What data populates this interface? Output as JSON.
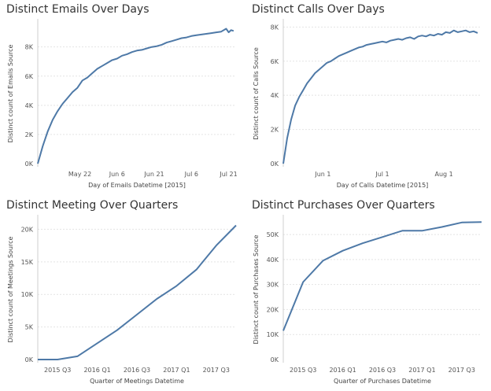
{
  "chart_data": [
    {
      "type": "line",
      "title": "Distinct Emails Over Days",
      "xlabel": "Day of Emails Datetime [2015]",
      "ylabel": "Distinct count of Emails Source",
      "x_ticks": [
        "May 22",
        "Jun 6",
        "Jun 21",
        "Jul 6",
        "Jul 21"
      ],
      "x_domain": [
        0,
        80
      ],
      "x_tick_pos": [
        17,
        32,
        47,
        62,
        77
      ],
      "y_ticks": [
        "0K",
        "2K",
        "4K",
        "6K",
        "8K"
      ],
      "y_tick_vals": [
        0,
        2000,
        4000,
        6000,
        8000
      ],
      "ylim": [
        0,
        9600
      ],
      "grid": true,
      "series": [
        {
          "x": [
            0,
            2,
            4,
            6,
            8,
            10,
            12,
            14,
            16,
            18,
            20,
            22,
            24,
            26,
            28,
            30,
            32,
            34,
            36,
            38,
            40,
            42,
            44,
            46,
            48,
            50,
            52,
            54,
            56,
            58,
            60,
            62,
            64,
            66,
            68,
            70,
            72,
            74,
            76,
            77,
            78,
            79
          ],
          "values": [
            0,
            1200,
            2200,
            3000,
            3600,
            4100,
            4500,
            4900,
            5200,
            5700,
            5900,
            6200,
            6500,
            6700,
            6900,
            7100,
            7200,
            7400,
            7500,
            7650,
            7750,
            7800,
            7900,
            8000,
            8050,
            8150,
            8300,
            8400,
            8500,
            8600,
            8650,
            8750,
            8800,
            8850,
            8900,
            8950,
            9000,
            9050,
            9250,
            9000,
            9150,
            9100
          ]
        }
      ]
    },
    {
      "type": "line",
      "title": "Distinct Calls Over Days",
      "xlabel": "Day of Calls Datetime [2015]",
      "ylabel": "Distinct count of Calls Source",
      "x_ticks": [
        "Jun 1",
        "Jul 1",
        "Aug 1"
      ],
      "x_domain": [
        0,
        100
      ],
      "x_tick_pos": [
        20,
        50,
        81
      ],
      "y_ticks": [
        "0K",
        "2K",
        "4K",
        "6K",
        "8K"
      ],
      "y_tick_vals": [
        0,
        2000,
        4000,
        6000,
        8000
      ],
      "ylim": [
        0,
        8200
      ],
      "grid": true,
      "series": [
        {
          "x": [
            0,
            2,
            4,
            6,
            8,
            10,
            12,
            14,
            16,
            18,
            20,
            22,
            24,
            26,
            28,
            30,
            32,
            34,
            36,
            38,
            40,
            42,
            44,
            46,
            48,
            50,
            52,
            54,
            56,
            58,
            60,
            62,
            64,
            66,
            68,
            70,
            72,
            74,
            76,
            78,
            80,
            82,
            84,
            86,
            88,
            90,
            92,
            94,
            96,
            98
          ],
          "values": [
            0,
            1500,
            2600,
            3400,
            3900,
            4300,
            4700,
            5000,
            5300,
            5500,
            5700,
            5900,
            6000,
            6150,
            6300,
            6400,
            6500,
            6600,
            6700,
            6800,
            6850,
            6950,
            7000,
            7050,
            7100,
            7150,
            7100,
            7200,
            7250,
            7300,
            7250,
            7350,
            7400,
            7300,
            7450,
            7500,
            7450,
            7550,
            7500,
            7600,
            7550,
            7700,
            7650,
            7800,
            7700,
            7750,
            7800,
            7700,
            7750,
            7650
          ]
        }
      ]
    },
    {
      "type": "line",
      "title": "Distinct Meeting Over Quarters",
      "xlabel": "Quarter of Meetings Datetime",
      "ylabel": "Distinct count of Meetings Source",
      "x_ticks": [
        "2015 Q3",
        "2016 Q1",
        "2016 Q3",
        "2017 Q1",
        "2017 Q3"
      ],
      "x_domain": [
        0,
        10
      ],
      "x_tick_pos": [
        1,
        3,
        5,
        7,
        9
      ],
      "y_ticks": [
        "0K",
        "5K",
        "10K",
        "15K",
        "20K"
      ],
      "y_tick_vals": [
        0,
        5000,
        10000,
        15000,
        20000
      ],
      "ylim": [
        0,
        21500
      ],
      "grid": true,
      "series": [
        {
          "x": [
            0,
            1,
            2,
            3,
            4,
            5,
            6,
            7,
            8,
            9,
            10
          ],
          "values": [
            0,
            0,
            500,
            2500,
            4500,
            6900,
            9300,
            11300,
            13800,
            17500,
            20600
          ]
        }
      ]
    },
    {
      "type": "line",
      "title": "Distinct Purchases Over Quarters",
      "xlabel": "Quarter of Purchases Datetime",
      "ylabel": "Distinct count of Purchases Source",
      "x_ticks": [
        "2015 Q3",
        "2016 Q1",
        "2016 Q3",
        "2017 Q1",
        "2017 Q3"
      ],
      "x_domain": [
        0,
        10
      ],
      "x_tick_pos": [
        1,
        3,
        5,
        7,
        9
      ],
      "y_ticks": [
        "0K",
        "10K",
        "20K",
        "30K",
        "40K",
        "50K"
      ],
      "y_tick_vals": [
        0,
        10000,
        20000,
        30000,
        40000,
        50000
      ],
      "ylim": [
        0,
        56000
      ],
      "grid": true,
      "series": [
        {
          "x": [
            0,
            1,
            2,
            3,
            4,
            5,
            6,
            7,
            8,
            9,
            10
          ],
          "values": [
            11500,
            31000,
            39500,
            43500,
            46500,
            49000,
            51500,
            51500,
            53000,
            54800,
            55000
          ]
        }
      ]
    }
  ]
}
